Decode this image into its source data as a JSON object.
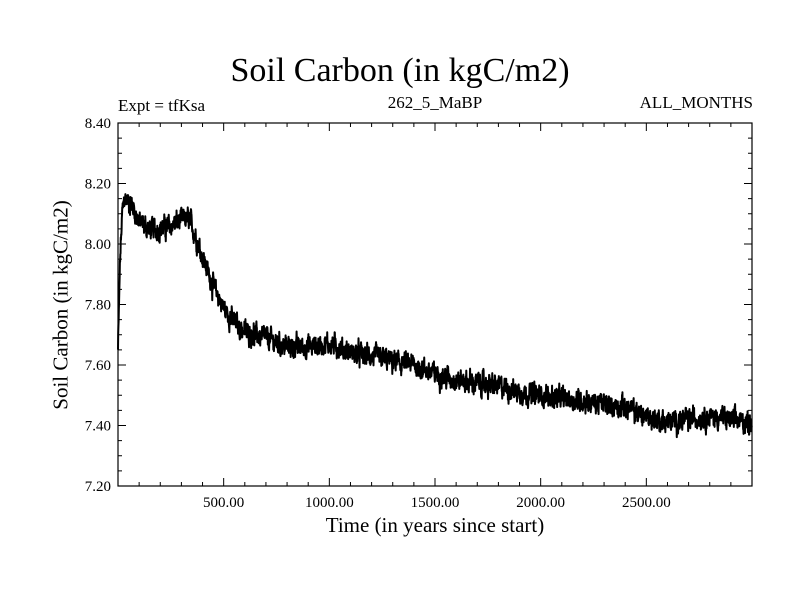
{
  "chart_data": {
    "type": "line",
    "title": "Soil Carbon (in kgC/m2)",
    "left_annotation": "Expt = tfKsa",
    "subtitle": "262_5_MaBP",
    "right_annotation": "ALL_MONTHS",
    "xlabel": "Time (in years since start)",
    "ylabel": "Soil Carbon (in kgC/m2)",
    "xlim": [
      0,
      3000
    ],
    "ylim": [
      7.2,
      8.4
    ],
    "xticks": [
      500,
      1000,
      1500,
      2000,
      2500
    ],
    "xtick_labels": [
      "500.00",
      "1000.00",
      "1500.00",
      "2000.00",
      "2500.00"
    ],
    "yticks": [
      7.2,
      7.4,
      7.6,
      7.8,
      8.0,
      8.2,
      8.4
    ],
    "ytick_labels": [
      "7.20",
      "7.40",
      "7.60",
      "7.80",
      "8.00",
      "8.20",
      "8.40"
    ],
    "grid": false,
    "series": [
      {
        "name": "Soil Carbon",
        "color": "#000000",
        "noise_amplitude": 0.035,
        "x": [
          0,
          10,
          20,
          30,
          50,
          75,
          100,
          150,
          200,
          250,
          300,
          340,
          380,
          420,
          450,
          500,
          550,
          600,
          700,
          800,
          900,
          1000,
          1100,
          1200,
          1300,
          1400,
          1500,
          1600,
          1700,
          1800,
          1900,
          2000,
          2100,
          2200,
          2300,
          2400,
          2500,
          2600,
          2700,
          2800,
          2900,
          3000
        ],
        "y": [
          7.65,
          7.95,
          8.1,
          8.15,
          8.14,
          8.12,
          8.07,
          8.05,
          8.05,
          8.06,
          8.08,
          8.08,
          8.0,
          7.92,
          7.86,
          7.79,
          7.74,
          7.71,
          7.69,
          7.66,
          7.66,
          7.67,
          7.64,
          7.63,
          7.61,
          7.6,
          7.57,
          7.55,
          7.54,
          7.53,
          7.51,
          7.5,
          7.49,
          7.48,
          7.47,
          7.46,
          7.43,
          7.41,
          7.42,
          7.43,
          7.42,
          7.41
        ]
      }
    ]
  }
}
